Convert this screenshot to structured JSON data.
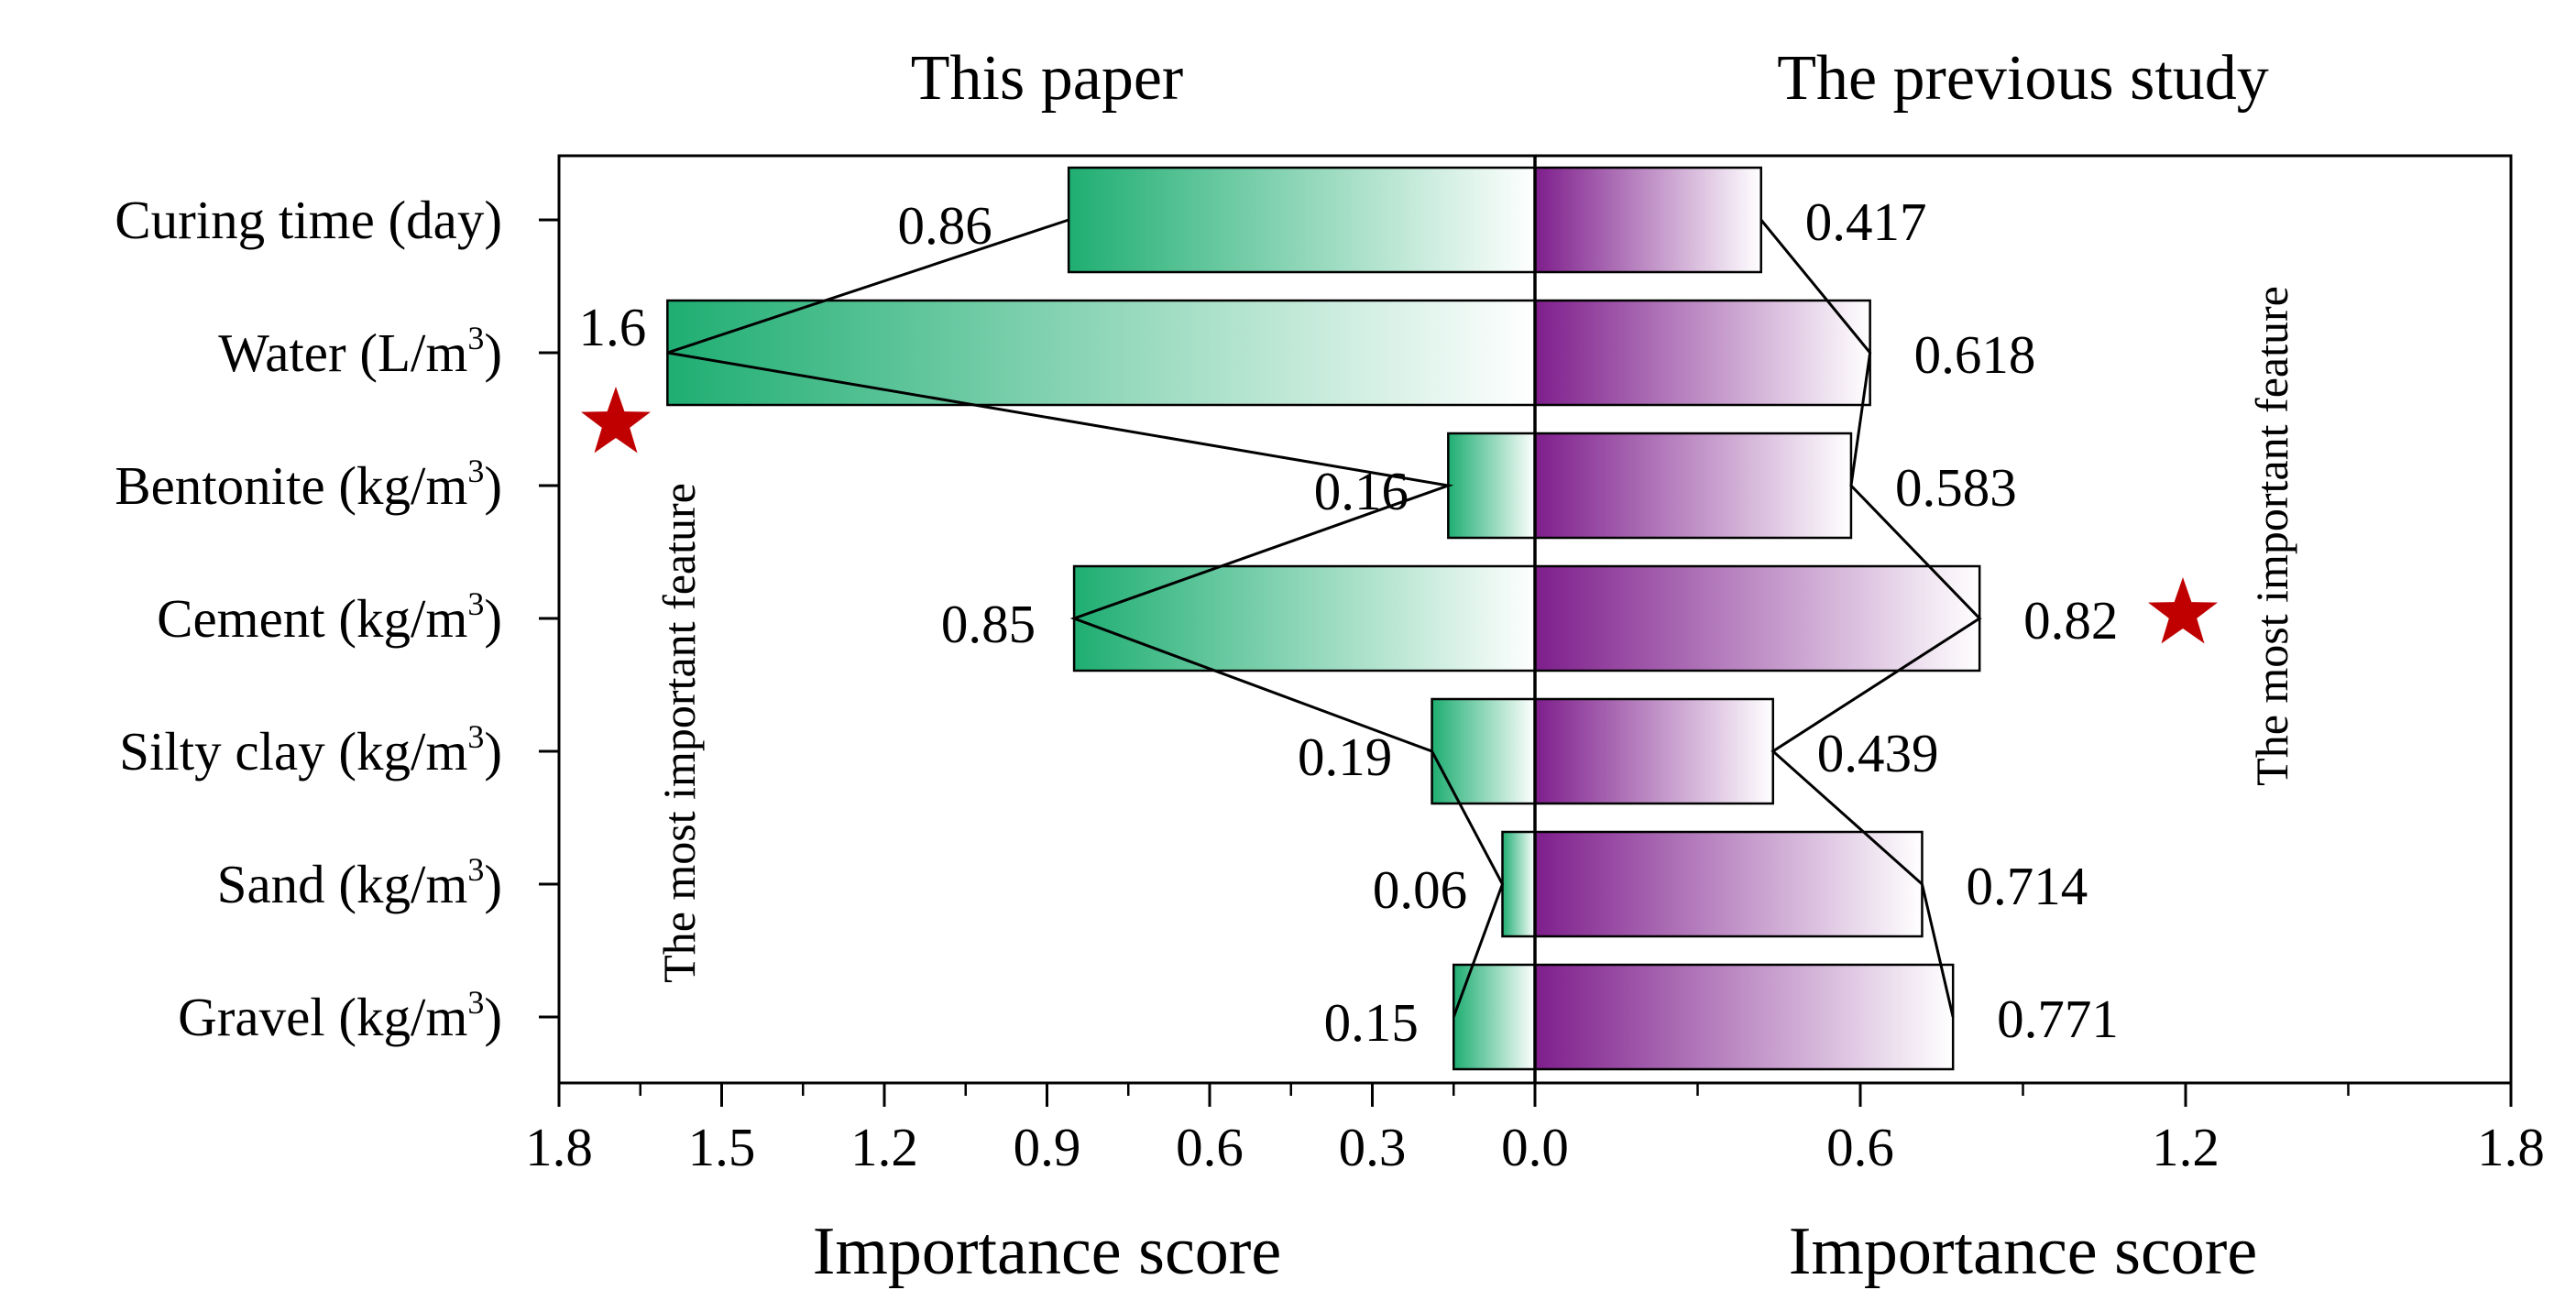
{
  "chart_data": {
    "type": "bar",
    "categories": [
      "Curing time (day)",
      "Water (L/m3)",
      "Bentonite (kg/m3)",
      "Cement (kg/m3)",
      "Silty clay (kg/m3)",
      "Sand (kg/m3)",
      "Gravel (kg/m3)"
    ],
    "category_labels": [
      {
        "base": "Curing time (day)",
        "sup": "",
        "tail": ""
      },
      {
        "base": "Water (L/m",
        "sup": "3",
        "tail": ")"
      },
      {
        "base": "Bentonite (kg/m",
        "sup": "3",
        "tail": ")"
      },
      {
        "base": "Cement (kg/m",
        "sup": "3",
        "tail": ")"
      },
      {
        "base": "Silty clay (kg/m",
        "sup": "3",
        "tail": ")"
      },
      {
        "base": "Sand (kg/m",
        "sup": "3",
        "tail": ")"
      },
      {
        "base": "Gravel (kg/m",
        "sup": "3",
        "tail": ")"
      }
    ],
    "series": [
      {
        "name": "This paper",
        "values": [
          0.86,
          1.6,
          0.16,
          0.85,
          0.19,
          0.06,
          0.15
        ],
        "value_labels": [
          "0.86",
          "1.6",
          "0.16",
          "0.85",
          "0.19",
          "0.06",
          "0.15"
        ],
        "color_start": "#1fae72",
        "color_end": "#ffffff"
      },
      {
        "name": "The previous study",
        "values": [
          0.417,
          0.618,
          0.583,
          0.82,
          0.439,
          0.714,
          0.771
        ],
        "value_labels": [
          "0.417",
          "0.618",
          "0.583",
          "0.82",
          "0.439",
          "0.714",
          "0.771"
        ],
        "color_start": "#7e1e8c",
        "color_end": "#ffffff"
      }
    ],
    "left_axis": {
      "ticks": [
        1.8,
        1.5,
        1.2,
        0.9,
        0.6,
        0.3,
        0.0
      ],
      "tick_labels": [
        "1.8",
        "1.5",
        "1.2",
        "0.9",
        "0.6",
        "0.3",
        "0.0"
      ],
      "range": [
        0,
        1.8
      ]
    },
    "right_axis": {
      "ticks": [
        0.6,
        1.2,
        1.8
      ],
      "tick_labels": [
        "0.6",
        "1.2",
        "1.8"
      ],
      "range": [
        0,
        1.8
      ]
    },
    "xlabel_left": "Importance score",
    "xlabel_right": "Importance score",
    "annotation_left": "The most important feature",
    "annotation_right": "The most important feature",
    "star_color": "#c00000",
    "grid": false
  }
}
